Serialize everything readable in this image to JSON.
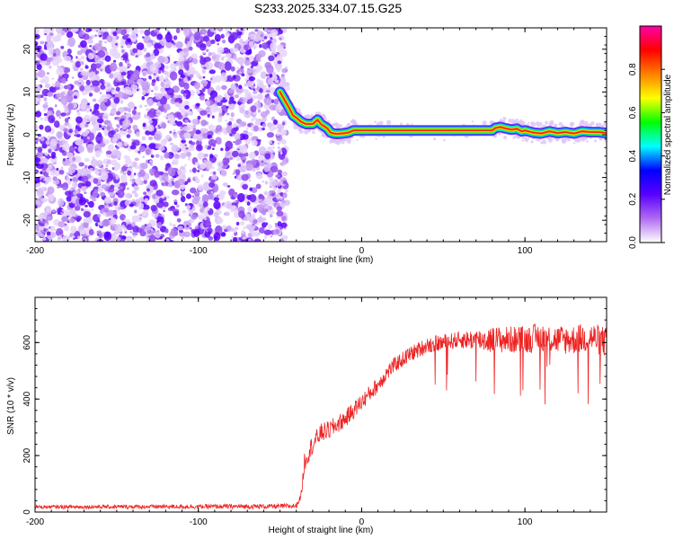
{
  "title": "S233.2025.334.07.15.G25",
  "chart_data": [
    {
      "type": "heatmap",
      "name": "spectrogram",
      "title": "",
      "xlabel": "Height of straight line (km)",
      "ylabel": "Frequency (Hz)",
      "xlim": [
        -200,
        150
      ],
      "ylim": [
        -25,
        25
      ],
      "xticks": [
        "-200",
        "-100",
        "0",
        "100"
      ],
      "xtick_values": [
        -200,
        -100,
        0,
        100
      ],
      "yticks": [
        "-20",
        "-10",
        "0",
        "10",
        "20"
      ],
      "ytick_values": [
        -20,
        -10,
        0,
        10,
        20
      ],
      "noise_region_x": [
        -200,
        -49
      ],
      "ridge": {
        "x": [
          -50,
          -47,
          -44,
          -42,
          -40,
          -37,
          -34,
          -30,
          -27,
          -25,
          -23,
          -21,
          -19,
          -17,
          -15,
          -12,
          -8,
          -5,
          0,
          20,
          50,
          80,
          82,
          85,
          88,
          92,
          95,
          98,
          100,
          105,
          110,
          115,
          120,
          125,
          130,
          135,
          140,
          145,
          150
        ],
        "y": [
          10,
          8,
          6,
          4.5,
          4,
          3,
          2.5,
          2.5,
          3.5,
          2.5,
          2,
          1.5,
          0.5,
          0.3,
          0.2,
          0.3,
          0.5,
          1,
          1,
          1,
          1,
          1,
          1.6,
          1.8,
          1.5,
          1.2,
          1.4,
          0.8,
          1,
          0.5,
          0.3,
          0.8,
          0.4,
          0.6,
          0.3,
          0.8,
          0.6,
          0.6,
          0.4
        ]
      },
      "colorbar": {
        "label": "Normalized spectral amplitude",
        "range": [
          0,
          1
        ],
        "ticks": [
          "0.0",
          "0.2",
          "0.4",
          "0.6",
          "0.8"
        ],
        "tick_values": [
          0,
          0.2,
          0.4,
          0.6,
          0.8
        ],
        "colors": [
          "#ffffff",
          "#b06bf2",
          "#5a00ff",
          "#0000ff",
          "#00ffff",
          "#00ff00",
          "#ffff00",
          "#ff8000",
          "#ff0000",
          "#ff00aa"
        ]
      }
    },
    {
      "type": "line",
      "name": "snr",
      "title": "",
      "xlabel": "Height of straight line (km)",
      "ylabel": "SNR (10 * v/v)",
      "xlim": [
        -200,
        150
      ],
      "ylim": [
        0,
        760
      ],
      "xticks": [
        "-200",
        "-100",
        "0",
        "100"
      ],
      "xtick_values": [
        -200,
        -100,
        0,
        100
      ],
      "yticks": [
        "0",
        "200",
        "400",
        "600"
      ],
      "ytick_values": [
        0,
        200,
        400,
        600
      ],
      "color": "#ee2222",
      "trend": {
        "x": [
          -200,
          -50,
          -40,
          -37,
          -35,
          -30,
          -25,
          -20,
          -15,
          -10,
          -5,
          0,
          5,
          10,
          15,
          20,
          25,
          30,
          40,
          50,
          60,
          70,
          80,
          90,
          100,
          110,
          120,
          130,
          140,
          150
        ],
        "y": [
          18,
          20,
          22,
          60,
          180,
          240,
          280,
          290,
          310,
          330,
          360,
          390,
          420,
          450,
          490,
          520,
          540,
          560,
          590,
          600,
          610,
          610,
          610,
          610,
          610,
          620,
          610,
          610,
          620,
          600
        ]
      },
      "noise_amp": [
        {
          "x": -200,
          "amp": 12
        },
        {
          "x": -38,
          "amp": 18
        },
        {
          "x": -35,
          "amp": 70
        },
        {
          "x": 20,
          "amp": 55
        },
        {
          "x": 60,
          "amp": 60
        },
        {
          "x": 80,
          "amp": 95
        },
        {
          "x": 150,
          "amp": 110
        }
      ]
    }
  ]
}
